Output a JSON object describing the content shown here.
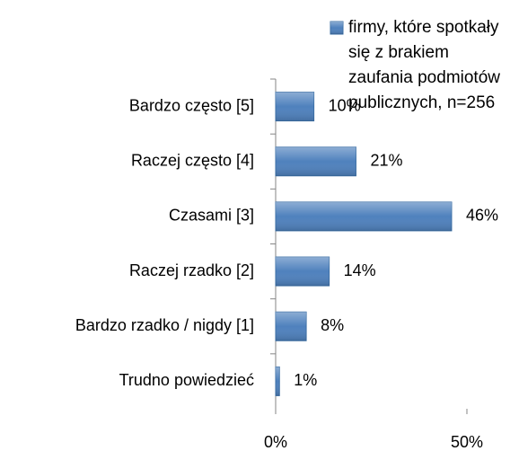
{
  "chart_data": {
    "type": "hbar",
    "categories": [
      "Bardzo często [5]",
      "Raczej często [4]",
      "Czasami [3]",
      "Raczej rzadko [2]",
      "Bardzo rzadko / nigdy [1]",
      "Trudno powiedzieć"
    ],
    "series": [
      {
        "name": "firmy, które spotkały się z brakiem zaufania podmiotów publicznych, n=256",
        "color": "#4f81bd",
        "values": [
          10,
          21,
          46,
          14,
          8,
          1
        ],
        "value_labels": [
          "10%",
          "21%",
          "46%",
          "14%",
          "8%",
          "1%"
        ]
      }
    ],
    "xlim": [
      0,
      50
    ],
    "xticks": [
      {
        "value": 0,
        "label": "0%"
      },
      {
        "value": 50,
        "label": "50%"
      }
    ],
    "legend": "top"
  }
}
